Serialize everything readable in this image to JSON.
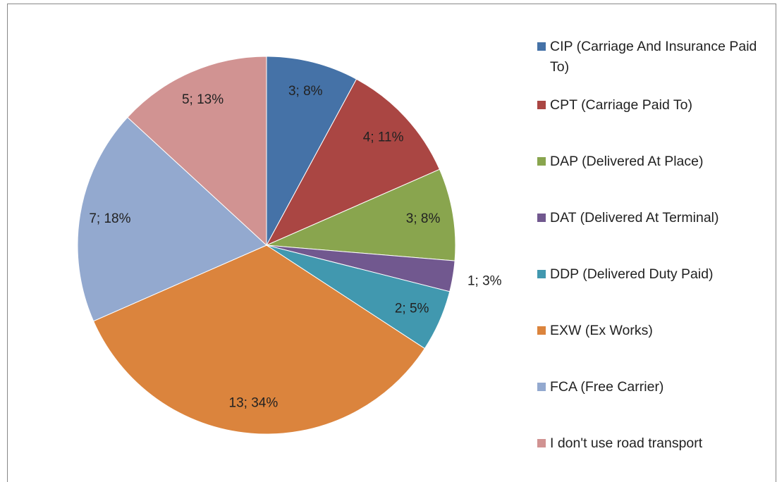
{
  "chart_data": {
    "type": "pie",
    "categories": [
      "CIP (Carriage And Insurance Paid To)",
      "CPT (Carriage Paid To)",
      "DAP (Delivered At Place)",
      "DAT (Delivered At Terminal)",
      "DDP (Delivered Duty Paid)",
      "EXW (Ex Works)",
      "FCA (Free Carrier)",
      "I don't use road transport"
    ],
    "values": [
      3,
      4,
      3,
      1,
      2,
      13,
      7,
      5
    ],
    "value_labels": [
      "3; 8%",
      "4; 11%",
      "3; 8%",
      "1; 3%",
      "2; 5%",
      "13; 34%",
      "7; 18%",
      "5; 13%"
    ],
    "colors": [
      "#4572a7",
      "#aa4643",
      "#89a54e",
      "#71588f",
      "#4198af",
      "#db843d",
      "#93a9cf",
      "#d19392"
    ],
    "legend": "right"
  }
}
